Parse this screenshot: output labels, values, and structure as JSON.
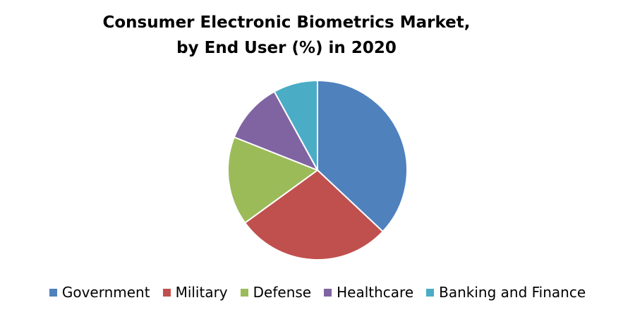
{
  "chart_data": {
    "type": "pie",
    "title_lines": [
      "Consumer Electronic Biometrics Market,",
      "by End User (%) in 2020"
    ],
    "categories": [
      "Government",
      "Military",
      "Defense",
      "Healthcare",
      "Banking and Finance"
    ],
    "values": [
      37,
      28,
      16,
      11,
      8
    ],
    "colors": [
      "#4F81BD",
      "#C0504D",
      "#9BBB59",
      "#8064A2",
      "#4BACC6"
    ],
    "legend_position": "bottom",
    "start_angle": "12 o'clock",
    "direction": "clockwise"
  }
}
